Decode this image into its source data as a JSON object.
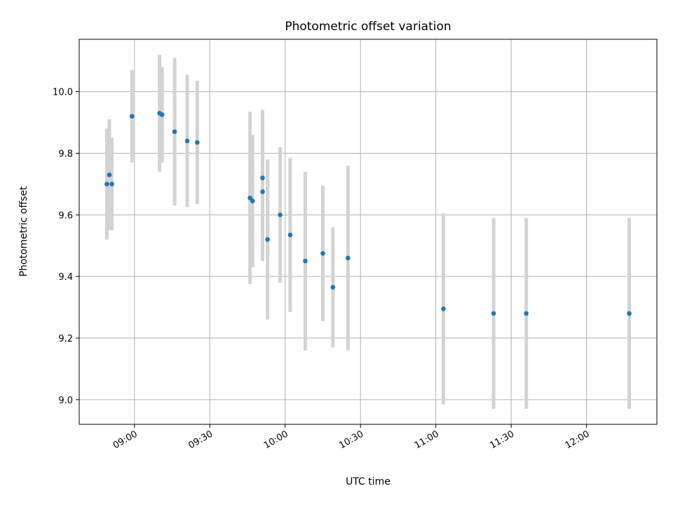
{
  "chart_data": {
    "type": "scatter",
    "title": "Photometric offset variation",
    "xlabel": "UTC time",
    "ylabel": "Photometric offset",
    "x_ticks": [
      "09:00",
      "09:30",
      "10:00",
      "10:30",
      "11:00",
      "11:30",
      "12:00"
    ],
    "y_ticks": [
      "9.0",
      "9.2",
      "9.4",
      "9.6",
      "9.8",
      "10.0"
    ],
    "xlim": [
      "08:38",
      "12:28"
    ],
    "ylim": [
      8.92,
      10.17
    ],
    "grid": true,
    "error_bars": true,
    "colors": {
      "point": "#1f77b4",
      "errorbar": "#d3d3d3",
      "grid": "#b0b0b0"
    },
    "series": [
      {
        "points": [
          {
            "x": "08:49",
            "y": 9.7,
            "yerr": 0.18
          },
          {
            "x": "08:50",
            "y": 9.73,
            "yerr": 0.18
          },
          {
            "x": "08:51",
            "y": 9.7,
            "yerr": 0.15
          },
          {
            "x": "08:59",
            "y": 9.92,
            "yerr": 0.15
          },
          {
            "x": "09:10",
            "y": 9.93,
            "yerr": 0.19
          },
          {
            "x": "09:11",
            "y": 9.925,
            "yerr": 0.155
          },
          {
            "x": "09:16",
            "y": 9.87,
            "yerr": 0.24
          },
          {
            "x": "09:21",
            "y": 9.84,
            "yerr": 0.215
          },
          {
            "x": "09:25",
            "y": 9.835,
            "yerr": 0.2
          },
          {
            "x": "09:46",
            "y": 9.655,
            "yerr": 0.28
          },
          {
            "x": "09:47",
            "y": 9.645,
            "yerr": 0.215
          },
          {
            "x": "09:51",
            "y": 9.72,
            "yerr": 0.22
          },
          {
            "x": "09:51",
            "y": 9.675,
            "yerr": 0.225
          },
          {
            "x": "09:53",
            "y": 9.52,
            "yerr": 0.26
          },
          {
            "x": "09:58",
            "y": 9.6,
            "yerr": 0.22
          },
          {
            "x": "10:02",
            "y": 9.535,
            "yerr": 0.25
          },
          {
            "x": "10:08",
            "y": 9.45,
            "yerr": 0.29
          },
          {
            "x": "10:15",
            "y": 9.475,
            "yerr": 0.22
          },
          {
            "x": "10:19",
            "y": 9.365,
            "yerr": 0.195
          },
          {
            "x": "10:25",
            "y": 9.46,
            "yerr": 0.3
          },
          {
            "x": "11:03",
            "y": 9.295,
            "yerr": 0.31
          },
          {
            "x": "11:23",
            "y": 9.28,
            "yerr": 0.31
          },
          {
            "x": "11:36",
            "y": 9.28,
            "yerr": 0.31
          },
          {
            "x": "12:17",
            "y": 9.28,
            "yerr": 0.31
          }
        ]
      }
    ]
  }
}
